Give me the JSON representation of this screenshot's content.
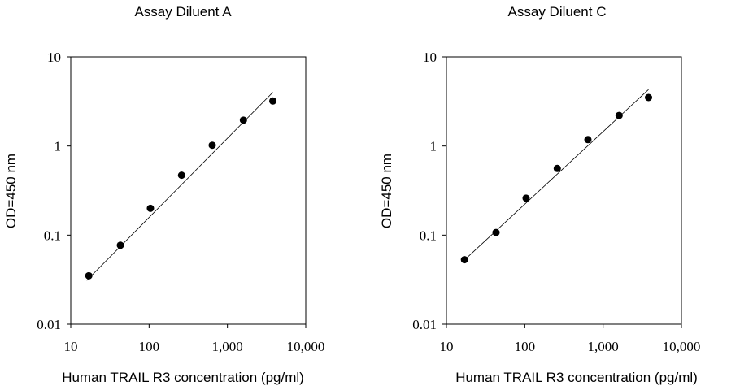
{
  "chart_data": [
    {
      "type": "scatter",
      "title": "Assay Diluent A",
      "xlabel": "Human TRAIL R3 concentration (pg/ml)",
      "ylabel": "OD=450 nm",
      "x_scale": "log",
      "y_scale": "log",
      "xlim": [
        10,
        10000
      ],
      "ylim": [
        0.01,
        10
      ],
      "x_ticks": [
        "10",
        "100",
        "1,000",
        "10,000"
      ],
      "y_ticks": [
        "10",
        "1",
        "0.1",
        "0.01"
      ],
      "grid": false,
      "x": [
        17,
        43,
        104,
        260,
        640,
        1600,
        3800
      ],
      "y": [
        0.035,
        0.077,
        0.2,
        0.47,
        1.02,
        1.95,
        3.2
      ],
      "fit_line": {
        "x": [
          16,
          3800
        ],
        "y": [
          0.031,
          4.0
        ]
      }
    },
    {
      "type": "scatter",
      "title": "Assay Diluent C",
      "xlabel": "Human TRAIL R3 concentration (pg/ml)",
      "ylabel": "OD=450 nm",
      "x_scale": "log",
      "y_scale": "log",
      "xlim": [
        10,
        10000
      ],
      "ylim": [
        0.01,
        10
      ],
      "x_ticks": [
        "10",
        "100",
        "1,000",
        "10,000"
      ],
      "y_ticks": [
        "10",
        "1",
        "0.1",
        "0.01"
      ],
      "grid": false,
      "x": [
        17,
        43,
        104,
        260,
        640,
        1600,
        3800
      ],
      "y": [
        0.053,
        0.107,
        0.26,
        0.56,
        1.18,
        2.2,
        3.5
      ],
      "fit_line": {
        "x": [
          16,
          3800
        ],
        "y": [
          0.05,
          4.3
        ]
      }
    }
  ]
}
